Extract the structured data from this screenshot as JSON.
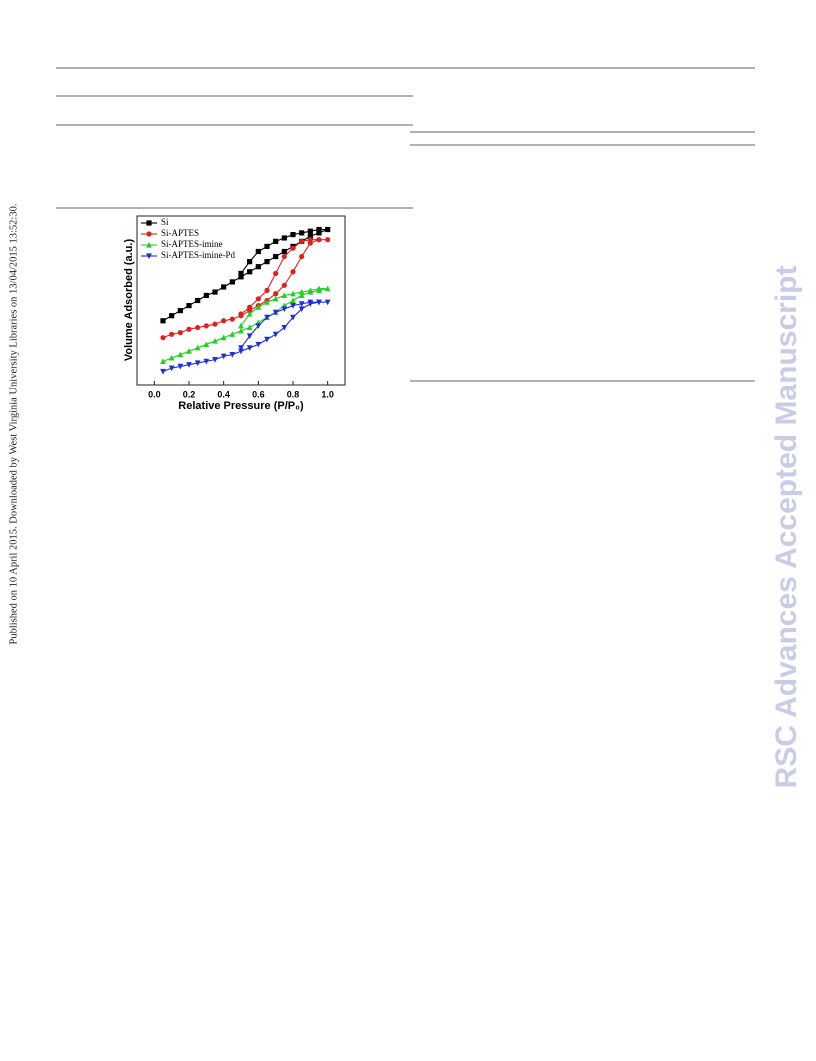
{
  "sidebar_text": "Published on 10 April 2015. Downloaded by West Virginia University Libraries on 13/04/2015 13:52:30.",
  "watermark": "RSC Advances Accepted Manuscript",
  "chart_data": {
    "type": "line",
    "xlabel": "Relative Pressure (P/P₀)",
    "ylabel": "Volume Adsorbed (a.u.)",
    "xlim": [
      -0.1,
      1.1
    ],
    "ylim": [
      0,
      100
    ],
    "xticks": [
      {
        "value": 0,
        "label": "0.0"
      },
      0.2,
      0.4,
      0.6,
      0.8,
      {
        "value": 1,
        "label": "1.0"
      }
    ],
    "legend": "top-left",
    "series": [
      {
        "name": "Si",
        "color": "#000000",
        "marker": "square",
        "x": [
          0.05,
          0.1,
          0.15,
          0.2,
          0.25,
          0.3,
          0.35,
          0.4,
          0.45,
          0.5,
          0.55,
          0.6,
          0.65,
          0.7,
          0.75,
          0.8,
          0.85,
          0.9,
          0.95,
          1.0,
          0.95,
          0.9,
          0.85,
          0.8,
          0.75,
          0.7,
          0.65,
          0.6,
          0.55,
          0.5
        ],
        "values": [
          38,
          41,
          44,
          47,
          50,
          53,
          55,
          58,
          61,
          64,
          67,
          70,
          73,
          76,
          79,
          82,
          85,
          88,
          90,
          92,
          92,
          91,
          90,
          89,
          87,
          85,
          82,
          79,
          73,
          66
        ]
      },
      {
        "name": "Si-APTES",
        "color": "#e0201c",
        "marker": "circle",
        "x": [
          0.05,
          0.1,
          0.15,
          0.2,
          0.25,
          0.3,
          0.35,
          0.4,
          0.45,
          0.5,
          0.55,
          0.6,
          0.65,
          0.7,
          0.75,
          0.8,
          0.85,
          0.9,
          0.95,
          1.0,
          0.95,
          0.9,
          0.85,
          0.8,
          0.75,
          0.7,
          0.65,
          0.6,
          0.55,
          0.5
        ],
        "values": [
          28,
          30,
          31,
          33,
          34,
          35,
          36,
          38,
          39,
          41,
          44,
          47,
          50,
          54,
          59,
          67,
          76,
          84,
          86,
          86,
          86,
          86,
          85,
          81,
          76,
          66,
          56,
          51,
          46,
          42
        ]
      },
      {
        "name": "Si-APTES-imine",
        "color": "#22d022",
        "marker": "triangle-up",
        "x": [
          0.05,
          0.1,
          0.15,
          0.2,
          0.25,
          0.3,
          0.35,
          0.4,
          0.45,
          0.5,
          0.55,
          0.6,
          0.65,
          0.7,
          0.75,
          0.8,
          0.85,
          0.9,
          0.95,
          1.0,
          0.95,
          0.9,
          0.85,
          0.8,
          0.75,
          0.7,
          0.65,
          0.6,
          0.55,
          0.5
        ],
        "values": [
          14,
          16,
          18,
          20,
          22,
          24,
          26,
          28,
          30,
          32,
          34,
          37,
          40,
          43,
          47,
          50,
          53,
          55,
          56,
          57,
          57,
          56,
          55,
          54,
          53,
          51,
          49,
          46,
          42,
          35
        ]
      },
      {
        "name": "Si-APTES-imine-Pd",
        "color": "#1f2fd8",
        "marker": "triangle-down",
        "x": [
          0.05,
          0.1,
          0.15,
          0.2,
          0.25,
          0.3,
          0.35,
          0.4,
          0.45,
          0.5,
          0.55,
          0.6,
          0.65,
          0.7,
          0.75,
          0.8,
          0.85,
          0.9,
          0.95,
          1.0,
          0.95,
          0.9,
          0.85,
          0.8,
          0.75,
          0.7,
          0.65,
          0.6,
          0.55,
          0.5
        ],
        "values": [
          8,
          10,
          11,
          12,
          13,
          14,
          15,
          17,
          18,
          20,
          22,
          24,
          27,
          30,
          34,
          40,
          45,
          48,
          49,
          49,
          49,
          49,
          48,
          47,
          45,
          43,
          40,
          35,
          29,
          22
        ]
      }
    ]
  }
}
